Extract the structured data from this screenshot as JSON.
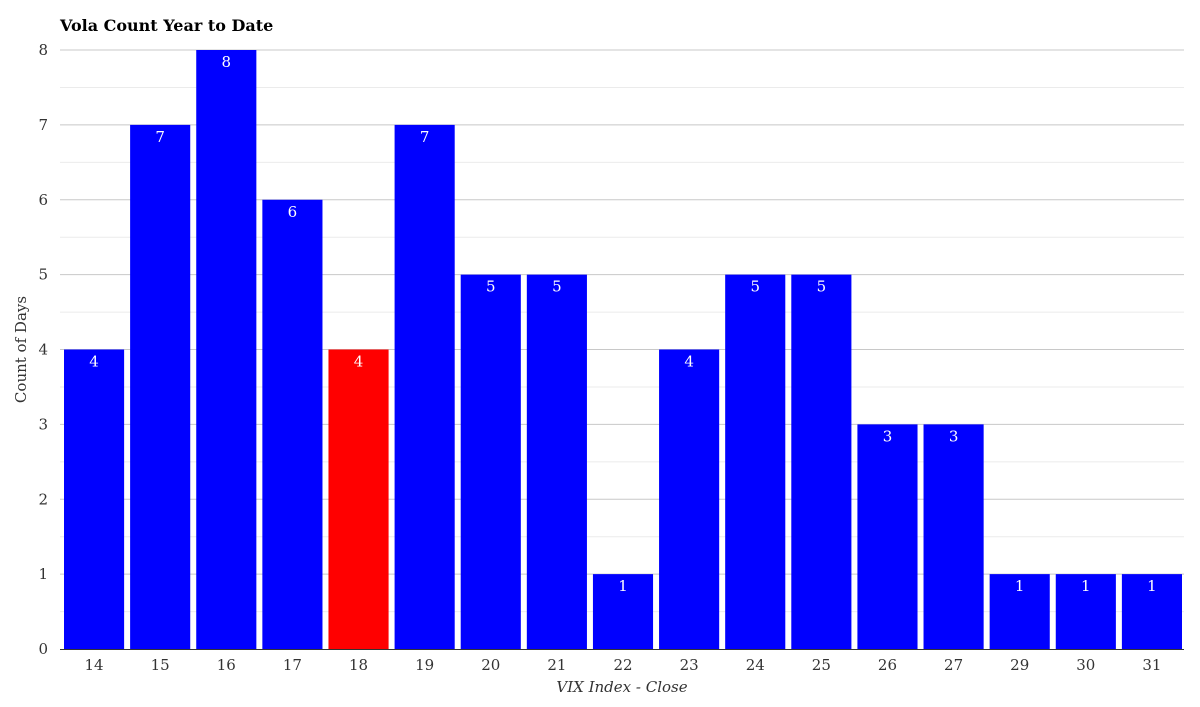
{
  "chart_data": {
    "type": "bar",
    "title": "Vola Count Year to Date",
    "xlabel": "VIX Index - Close",
    "ylabel": "Count of Days",
    "categories": [
      "14",
      "15",
      "16",
      "17",
      "18",
      "19",
      "20",
      "21",
      "22",
      "23",
      "24",
      "25",
      "26",
      "27",
      "29",
      "30",
      "31"
    ],
    "values": [
      4,
      7,
      8,
      6,
      4,
      7,
      5,
      5,
      1,
      4,
      5,
      5,
      3,
      3,
      1,
      1,
      1
    ],
    "highlight_category": "18",
    "ylim": [
      0,
      8
    ],
    "yticks": [
      0,
      1,
      2,
      3,
      4,
      5,
      6,
      7,
      8
    ],
    "grid": true,
    "legend": "none",
    "colors": {
      "bar": "#0000ff",
      "highlight": "#ff0000",
      "label": "#ffffff",
      "grid": "#c8c8c8"
    }
  }
}
